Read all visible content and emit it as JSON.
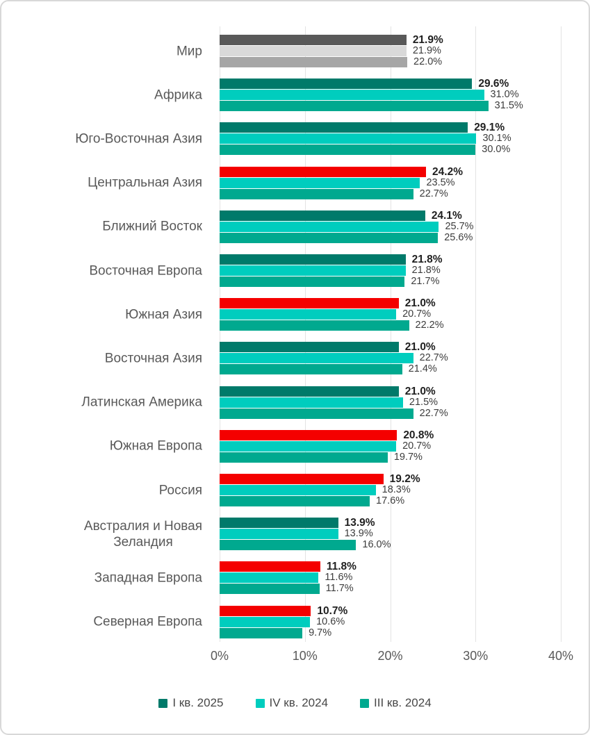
{
  "frame": {
    "background": "#ffffff",
    "border_color": "#d8d8d8"
  },
  "chart_data": {
    "type": "bar",
    "orientation": "horizontal",
    "unit": "%",
    "xlim": [
      0,
      40
    ],
    "x_ticks": [
      "0%",
      "10%",
      "20%",
      "30%",
      "40%"
    ],
    "grid": "vertical",
    "legend_position": "bottom",
    "gridline_color": "#e3e3e3",
    "text_colors": {
      "category": "#595959",
      "value_bold": "#1f1f1f",
      "value": "#3c3c3c",
      "axis": "#595959",
      "legend": "#474747"
    },
    "series": [
      {
        "name": "I кв. 2025",
        "color": "#007A6A",
        "highlight_color": "#F40000",
        "world_color": "#595959"
      },
      {
        "name": "IV кв. 2024",
        "color": "#00CDBE",
        "world_color": "#D9D9D9"
      },
      {
        "name": "III кв. 2024",
        "color": "#00A98F",
        "world_color": "#A6A6A6"
      }
    ],
    "categories": [
      {
        "label": "Мир",
        "values": [
          21.9,
          21.9,
          22.0
        ],
        "value_labels": [
          "21.9%",
          "21.9%",
          "22.0%"
        ],
        "variant": "world"
      },
      {
        "label": "Африка",
        "values": [
          29.6,
          31.0,
          31.5
        ],
        "value_labels": [
          "29.6%",
          "31.0%",
          "31.5%"
        ],
        "variant": "normal"
      },
      {
        "label": "Юго-Восточная Азия",
        "values": [
          29.1,
          30.1,
          30.0
        ],
        "value_labels": [
          "29.1%",
          "30.1%",
          "30.0%"
        ],
        "variant": "normal"
      },
      {
        "label": "Центральная Азия",
        "values": [
          24.2,
          23.5,
          22.7
        ],
        "value_labels": [
          "24.2%",
          "23.5%",
          "22.7%"
        ],
        "variant": "highlight"
      },
      {
        "label": "Ближний Восток",
        "values": [
          24.1,
          25.7,
          25.6
        ],
        "value_labels": [
          "24.1%",
          "25.7%",
          "25.6%"
        ],
        "variant": "normal"
      },
      {
        "label": "Восточная Европа",
        "values": [
          21.8,
          21.8,
          21.7
        ],
        "value_labels": [
          "21.8%",
          "21.8%",
          "21.7%"
        ],
        "variant": "normal"
      },
      {
        "label": "Южная Азия",
        "values": [
          21.0,
          20.7,
          22.2
        ],
        "value_labels": [
          "21.0%",
          "20.7%",
          "22.2%"
        ],
        "variant": "highlight"
      },
      {
        "label": "Восточная Азия",
        "values": [
          21.0,
          22.7,
          21.4
        ],
        "value_labels": [
          "21.0%",
          "22.7%",
          "21.4%"
        ],
        "variant": "normal"
      },
      {
        "label": "Латинская Америка",
        "values": [
          21.0,
          21.5,
          22.7
        ],
        "value_labels": [
          "21.0%",
          "21.5%",
          "22.7%"
        ],
        "variant": "normal"
      },
      {
        "label": "Южная Европа",
        "values": [
          20.8,
          20.7,
          19.7
        ],
        "value_labels": [
          "20.8%",
          "20.7%",
          "19.7%"
        ],
        "variant": "highlight"
      },
      {
        "label": "Россия",
        "values": [
          19.2,
          18.3,
          17.6
        ],
        "value_labels": [
          "19.2%",
          "18.3%",
          "17.6%"
        ],
        "variant": "highlight"
      },
      {
        "label": "Австралия и Новая\nЗеландия",
        "values": [
          13.9,
          13.9,
          16.0
        ],
        "value_labels": [
          "13.9%",
          "13.9%",
          "16.0%"
        ],
        "variant": "normal"
      },
      {
        "label": "Западная Европа",
        "values": [
          11.8,
          11.6,
          11.7
        ],
        "value_labels": [
          "11.8%",
          "11.6%",
          "11.7%"
        ],
        "variant": "highlight"
      },
      {
        "label": "Северная Европа",
        "values": [
          10.7,
          10.6,
          9.7
        ],
        "value_labels": [
          "10.7%",
          "10.6%",
          "9.7%"
        ],
        "variant": "highlight"
      }
    ]
  }
}
